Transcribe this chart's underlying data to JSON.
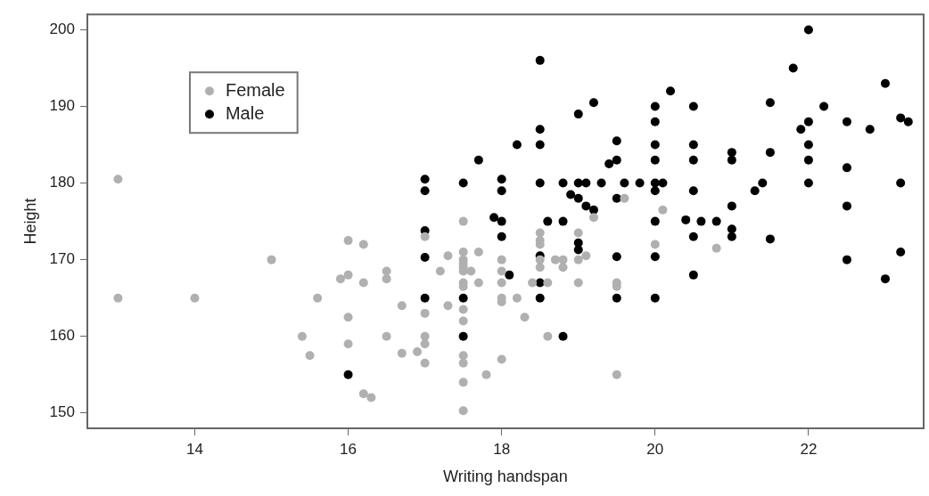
{
  "chart_data": {
    "type": "scatter",
    "xlabel": "Writing handspan",
    "ylabel": "Height",
    "xlim": [
      12.6,
      23.5
    ],
    "ylim": [
      148,
      202
    ],
    "xticks": [
      14,
      16,
      18,
      20,
      22
    ],
    "yticks": [
      150,
      160,
      170,
      180,
      190,
      200
    ],
    "grid": false,
    "legend": "top left",
    "marker": "circle",
    "series": [
      {
        "name": "Female",
        "color": "#b0b0b0",
        "x": [
          13,
          13,
          14,
          15,
          15.6,
          15.4,
          15.5,
          16,
          16,
          15.9,
          16,
          16,
          16.2,
          16.2,
          16.5,
          16.5,
          16.5,
          16.2,
          16.3,
          16.7,
          16.7,
          16.9,
          17,
          17,
          17,
          17,
          17,
          17.3,
          17.2,
          17.3,
          17.5,
          17.5,
          17.5,
          17.5,
          17.5,
          17.5,
          17.5,
          17.5,
          17.5,
          17.5,
          17.5,
          17.5,
          17.5,
          17.5,
          17.7,
          17.6,
          17.7,
          17.8,
          18,
          18,
          18,
          18,
          18,
          18,
          18.2,
          18.4,
          18.3,
          18.5,
          18.5,
          18.5,
          18.5,
          18.5,
          18.6,
          18.7,
          18.6,
          18.8,
          18.8,
          19,
          19.1,
          19,
          19,
          19.2,
          19.5,
          19.5,
          19.5,
          19.6,
          20,
          20.1,
          20.8
        ],
        "values": [
          180.5,
          165,
          165,
          170,
          165,
          160,
          157.5,
          159,
          162.5,
          167.5,
          168,
          172.5,
          172,
          167,
          168.5,
          167.5,
          160,
          152.5,
          152,
          164,
          157.8,
          158,
          160,
          159,
          156.5,
          163,
          173,
          170.5,
          168.5,
          164,
          175,
          171,
          170,
          169.5,
          169,
          168.5,
          167,
          166.5,
          163.5,
          162,
          157.5,
          156.5,
          154,
          150.3,
          167,
          168.5,
          171,
          155,
          170,
          168.5,
          167,
          165,
          164.5,
          157,
          165,
          167,
          162.5,
          173.5,
          172.5,
          172,
          170,
          169,
          167,
          170,
          160,
          170,
          169,
          170,
          170.5,
          167,
          173.5,
          175.5,
          167,
          166.5,
          155,
          178,
          172,
          176.5,
          171.5
        ]
      },
      {
        "name": "Male",
        "color": "#000000",
        "x": [
          18.5,
          22,
          21.8,
          23,
          19.2,
          19,
          20.2,
          20,
          22.2,
          21.5,
          18.5,
          18.2,
          18.5,
          19.5,
          20,
          20.5,
          21.9,
          22,
          22.5,
          22.8,
          23.2,
          23.3,
          20,
          20.5,
          17.7,
          19.5,
          19.4,
          20,
          20.5,
          21,
          21,
          21.5,
          22,
          22,
          22.5,
          17,
          17,
          17.5,
          18,
          18,
          18.5,
          18.8,
          19,
          19.1,
          18.9,
          19,
          19.1,
          19.2,
          19.3,
          19.6,
          19.8,
          19.5,
          20,
          20,
          20.1,
          20.5,
          21,
          21.3,
          21.4,
          22,
          23.2,
          22.5,
          18.6,
          18.8,
          20,
          20.4,
          20.6,
          20.8,
          21,
          21,
          20.5,
          21.5,
          17.9,
          18,
          18,
          19,
          19,
          17,
          17,
          18.5,
          19.5,
          20,
          18.1,
          20.5,
          22.5,
          23.2,
          23,
          17,
          17.5,
          18.5,
          19.5,
          20,
          18.5,
          17.5,
          18.8,
          16
        ],
        "values": [
          196,
          200,
          195,
          193,
          190.5,
          189,
          192,
          190,
          190,
          190.5,
          187,
          185,
          185,
          185.5,
          185,
          185,
          187,
          188,
          188,
          187,
          188.5,
          188,
          188,
          190,
          183,
          183,
          182.5,
          183,
          183,
          184,
          183,
          184,
          183,
          185,
          182,
          180.5,
          179,
          180,
          180.5,
          179,
          180,
          180,
          180,
          180,
          178.5,
          178,
          177,
          176.5,
          180,
          180,
          180,
          178,
          179,
          180,
          180,
          179,
          177,
          179,
          180,
          180,
          180,
          177,
          175,
          175,
          175,
          175.2,
          175,
          175,
          174,
          173,
          173,
          172.7,
          175.5,
          175,
          173,
          172.2,
          171.3,
          173.8,
          170.3,
          170.5,
          170.4,
          170.4,
          168,
          168,
          170,
          171,
          167.5,
          165,
          165,
          165,
          165,
          165,
          167,
          160,
          160,
          155
        ]
      }
    ]
  }
}
